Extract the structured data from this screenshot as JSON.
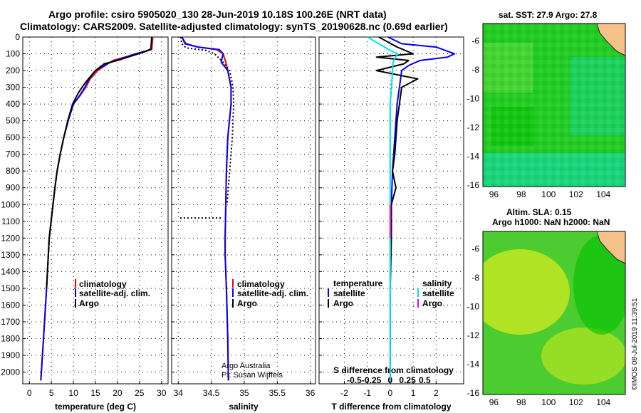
{
  "title_line1": "Argo profile: csiro 5905020_130 28-Jun-2019 10.18S 100.26E (NRT data)",
  "title_line2": "Climatology: CARS2009. Satellite-adjusted climatology: synTS_20190628.nc (0.69d earlier)",
  "watermark": "©IMOS 08-Jul-2019 11:39:51",
  "credit": {
    "line1": "Argo Australia",
    "line2": "PI: Susan Wijffels"
  },
  "colors": {
    "climatology": "#ff0000",
    "satellite": "#0000ff",
    "argo": "#000000",
    "satellite_salinity": "#00e5e5",
    "argo_salinity": "#ff00ff",
    "coast": "#f5c08a",
    "ocean_dark": "#00c000",
    "ocean_mid": "#22cc22",
    "ocean_light": "#60dd40",
    "ocean_cyan": "#18d8a0",
    "sla_yellow": "#c8e820",
    "sla_green": "#4ccc30"
  },
  "legend_temperature": {
    "climatology": "climatology",
    "satellite": "satellite-adj. clim.",
    "argo": "Argo"
  },
  "legend_salinity": {
    "climatology": "climatology",
    "satellite": "satellite-adj. clim.",
    "argo": "Argo"
  },
  "legend_diff": {
    "temperature_header": "temperature",
    "salinity_header": "salinity",
    "temp_satellite": "satellite",
    "temp_argo": "Argo",
    "sal_satellite": "satellite",
    "sal_argo": "Argo"
  },
  "map_sst": {
    "title": "sat. SST: 27.9 Argo: 27.8",
    "profile_lon": 100.26,
    "profile_lat": -10.18
  },
  "map_sla": {
    "title1": "Altim. SLA: 0.15",
    "title2": "Argo h1000: NaN h2000: NaN",
    "profile_lon": 100.26,
    "profile_lat": -10.18
  },
  "chart_data": [
    {
      "type": "line",
      "xlabel": "temperature (deg C)",
      "ylabel": "",
      "xlim": [
        -1.5,
        31.5
      ],
      "ylim": [
        2070,
        0
      ],
      "xticks": [
        0,
        5,
        10,
        15,
        20,
        25,
        30
      ],
      "yticks": [
        0,
        100,
        200,
        300,
        400,
        500,
        600,
        700,
        800,
        900,
        1000,
        1100,
        1200,
        1300,
        1400,
        1500,
        1600,
        1700,
        1800,
        1900,
        2000
      ],
      "grid": true,
      "legend": "lower-left",
      "series": [
        {
          "name": "climatology",
          "x": [
            28.0,
            27.8,
            24.5,
            19.0,
            15.5,
            13.8,
            12.8,
            11.5,
            10.0,
            8.8,
            7.8,
            7.0,
            6.3,
            5.8,
            4.5,
            3.9,
            3.2,
            2.6
          ],
          "y": [
            0,
            75,
            100,
            140,
            200,
            250,
            300,
            350,
            400,
            500,
            600,
            700,
            800,
            900,
            1200,
            1500,
            1800,
            2050
          ]
        },
        {
          "name": "satellite-adj. clim.",
          "x": [
            27.8,
            27.6,
            23.5,
            18.0,
            15.0,
            13.6,
            12.6,
            11.4,
            10.0,
            8.8,
            7.8,
            7.0,
            6.3,
            5.8,
            4.5,
            3.9,
            3.2,
            2.6
          ],
          "y": [
            0,
            75,
            105,
            155,
            200,
            250,
            300,
            350,
            400,
            500,
            600,
            700,
            800,
            900,
            1200,
            1500,
            1800,
            2050
          ]
        },
        {
          "name": "Argo",
          "x": [
            27.8,
            27.6,
            26.5,
            20.0,
            17.0,
            15.0,
            13.7,
            12.5,
            11.2,
            9.8,
            8.7,
            7.8,
            7.0,
            6.3,
            5.8,
            4.5,
            3.9
          ],
          "y": [
            0,
            70,
            85,
            140,
            160,
            200,
            240,
            280,
            330,
            400,
            500,
            600,
            700,
            800,
            900,
            1200,
            1500
          ]
        }
      ]
    },
    {
      "type": "line",
      "xlabel": "salinity",
      "ylabel": "",
      "xlim": [
        33.9,
        36.08
      ],
      "ylim": [
        2070,
        0
      ],
      "xticks": [
        34,
        34.5,
        35,
        35.5,
        36
      ],
      "grid": true,
      "legend": "lower-left",
      "series": [
        {
          "name": "climatology",
          "x": [
            34.05,
            34.12,
            34.3,
            34.58,
            34.68,
            34.72,
            34.75,
            34.8,
            34.8,
            34.75,
            34.73,
            34.72,
            34.71,
            34.71,
            34.73,
            34.75,
            34.76
          ],
          "y": [
            0,
            40,
            60,
            75,
            100,
            150,
            200,
            300,
            400,
            600,
            800,
            1000,
            1200,
            1300,
            1500,
            1800,
            2050
          ]
        },
        {
          "name": "satellite-adj. clim.",
          "x": [
            34.06,
            34.1,
            34.3,
            34.62,
            34.68,
            34.65,
            34.75,
            34.8,
            34.8,
            34.75,
            34.73,
            34.72,
            34.71,
            34.71,
            34.73,
            34.75,
            34.76
          ],
          "y": [
            0,
            40,
            60,
            75,
            100,
            150,
            200,
            300,
            400,
            600,
            800,
            1000,
            1200,
            1300,
            1500,
            1800,
            2050
          ]
        },
        {
          "name": "Argo",
          "x": [
            34.04,
            34.05,
            34.12,
            34.42,
            34.55,
            34.68,
            34.78,
            34.83,
            34.84,
            34.82,
            34.78,
            34.74
          ],
          "y": [
            0,
            40,
            65,
            80,
            100,
            150,
            200,
            300,
            400,
            600,
            800,
            1000
          ]
        }
      ]
    },
    {
      "type": "line",
      "xlabel": "T difference from climatology",
      "xlabel2": "S difference from climatology",
      "ylabel": "",
      "xlim": [
        -3.1,
        3.2
      ],
      "ylim": [
        2070,
        0
      ],
      "xticks": [
        -2,
        -1,
        0,
        1,
        2
      ],
      "xticks2": [
        "-0.5",
        "-0.25",
        "0",
        "0.25",
        "0.5"
      ],
      "grid": true,
      "legend": "lower-left",
      "series": [
        {
          "name": "temperature satellite",
          "x": [
            -0.1,
            0.5,
            2.0,
            2.8,
            2.5,
            1.3,
            0.8,
            0.5,
            0.4,
            0.3,
            0.2,
            0.1,
            0.05,
            0.0,
            0.0,
            0.0
          ],
          "y": [
            0,
            40,
            60,
            100,
            120,
            140,
            170,
            200,
            300,
            400,
            600,
            800,
            1000,
            1300,
            1600,
            2050
          ]
        },
        {
          "name": "temperature Argo",
          "x": [
            -0.5,
            0.3,
            1.0,
            -0.6,
            0.8,
            0.6,
            -0.6,
            1.2,
            0.5,
            0.4,
            0.3,
            0.2,
            0.1,
            0.25,
            0.05,
            0.05,
            0.0
          ],
          "y": [
            0,
            60,
            100,
            120,
            140,
            160,
            200,
            250,
            300,
            400,
            500,
            700,
            800,
            900,
            1000,
            1200,
            1500
          ]
        },
        {
          "name": "salinity satellite",
          "x": [
            -0.25,
            0.0,
            0.08,
            0.03,
            0.02,
            0.0,
            0.0,
            0.0,
            0.0,
            0.0
          ],
          "y": [
            0,
            80,
            100,
            150,
            250,
            400,
            600,
            1000,
            1500,
            2050
          ]
        },
        {
          "name": "salinity Argo",
          "x": [
            0.0,
            0.0
          ],
          "y": [
            1000,
            1200
          ]
        }
      ]
    },
    {
      "type": "heatmap",
      "title": "sat. SST: 27.9 Argo: 27.8",
      "xlim": [
        95.2,
        105.6
      ],
      "ylim": [
        -16.1,
        -4.8
      ],
      "xticks": [
        96,
        98,
        100,
        102,
        104
      ],
      "yticks": [
        -6,
        -8,
        -10,
        -12,
        -14,
        -16
      ]
    },
    {
      "type": "heatmap",
      "title": "Altim. SLA: 0.15",
      "subtitle": "Argo h1000: NaN h2000: NaN",
      "xlim": [
        95.2,
        105.6
      ],
      "ylim": [
        -16.1,
        -4.8
      ],
      "xticks": [
        96,
        98,
        100,
        102,
        104
      ],
      "yticks": [
        -6,
        -8,
        -10,
        -12,
        -14,
        -16
      ]
    }
  ]
}
